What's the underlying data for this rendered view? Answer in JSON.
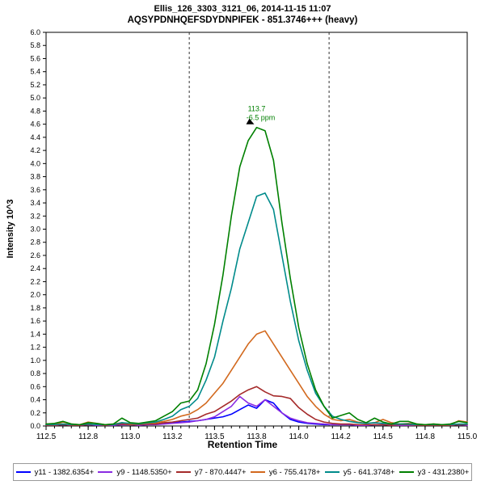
{
  "header": {
    "line1": "Ellis_126_3303_3121_06, 2014-11-15 11:07",
    "line2": "AQSYPDNHQEFSDYDNPIFEK - 851.3746+++ (heavy)"
  },
  "chart_data": {
    "type": "line",
    "title": "Ellis_126_3303_3121_06, 2014-11-15 11:07",
    "subtitle": "AQSYPDNHQEFSDYDNPIFEK - 851.3746+++ (heavy)",
    "xlabel": "Retention Time",
    "ylabel": "Intensity 10^3",
    "xlim": [
      112.5,
      115.0
    ],
    "ylim": [
      0.0,
      6.0
    ],
    "y_tick_step": 0.2,
    "x_minor_step": 0.05,
    "x_ticks": {
      "values": [
        112.5,
        112.75,
        113.0,
        113.25,
        113.5,
        113.75,
        114.0,
        114.25,
        114.5,
        114.75,
        115.0
      ],
      "labels": [
        "112.5",
        "112.8",
        "113.0",
        "113.2",
        "113.5",
        "113.8",
        "114.0",
        "114.2",
        "114.5",
        "114.8",
        "115.0"
      ]
    },
    "grid": false,
    "legend_position": "bottom",
    "peak_boundaries": [
      113.35,
      114.18
    ],
    "annotation": {
      "rt": 113.75,
      "apex_intensity": 4.55,
      "label": "113.7",
      "ppm": "-6.5 ppm",
      "color": "#008000"
    },
    "x": [
      112.5,
      112.55,
      112.6,
      112.65,
      112.7,
      112.75,
      112.8,
      112.85,
      112.9,
      112.95,
      113.0,
      113.05,
      113.1,
      113.15,
      113.2,
      113.25,
      113.3,
      113.35,
      113.4,
      113.45,
      113.5,
      113.55,
      113.6,
      113.65,
      113.7,
      113.75,
      113.8,
      113.85,
      113.9,
      113.95,
      114.0,
      114.05,
      114.1,
      114.15,
      114.2,
      114.25,
      114.3,
      114.35,
      114.4,
      114.45,
      114.5,
      114.55,
      114.6,
      114.65,
      114.7,
      114.75,
      114.8,
      114.85,
      114.9,
      114.95,
      115.0
    ],
    "series": [
      {
        "id": "y11",
        "name": "y11 - 1382.6354+",
        "color": "#0000FF",
        "values": [
          0.02,
          0.01,
          0.02,
          0.01,
          0.01,
          0.02,
          0.02,
          0.01,
          0.02,
          0.02,
          0.02,
          0.02,
          0.02,
          0.03,
          0.04,
          0.05,
          0.06,
          0.07,
          0.08,
          0.1,
          0.12,
          0.14,
          0.18,
          0.25,
          0.32,
          0.27,
          0.4,
          0.35,
          0.2,
          0.1,
          0.06,
          0.04,
          0.03,
          0.02,
          0.02,
          0.02,
          0.02,
          0.01,
          0.01,
          0.02,
          0.02,
          0.01,
          0.01,
          0.01,
          0.01,
          0.01,
          0.01,
          0.01,
          0.01,
          0.02,
          0.02
        ]
      },
      {
        "id": "y9",
        "name": "y9 - 1148.5350+",
        "color": "#8A2BE2",
        "values": [
          0.01,
          0.01,
          0.02,
          0.01,
          0.01,
          0.02,
          0.01,
          0.01,
          0.01,
          0.02,
          0.02,
          0.01,
          0.02,
          0.02,
          0.03,
          0.04,
          0.05,
          0.06,
          0.08,
          0.1,
          0.14,
          0.22,
          0.3,
          0.45,
          0.35,
          0.3,
          0.4,
          0.3,
          0.2,
          0.12,
          0.08,
          0.05,
          0.04,
          0.03,
          0.02,
          0.02,
          0.02,
          0.01,
          0.01,
          0.02,
          0.02,
          0.01,
          0.01,
          0.01,
          0.01,
          0.01,
          0.01,
          0.01,
          0.01,
          0.02,
          0.01
        ]
      },
      {
        "id": "y7",
        "name": "y7 - 870.4447+",
        "color": "#A52A2A",
        "values": [
          0.01,
          0.01,
          0.02,
          0.01,
          0.01,
          0.02,
          0.02,
          0.01,
          0.02,
          0.03,
          0.02,
          0.02,
          0.03,
          0.03,
          0.05,
          0.06,
          0.08,
          0.1,
          0.12,
          0.18,
          0.22,
          0.3,
          0.38,
          0.48,
          0.55,
          0.6,
          0.52,
          0.46,
          0.45,
          0.42,
          0.28,
          0.18,
          0.1,
          0.06,
          0.04,
          0.03,
          0.03,
          0.02,
          0.02,
          0.02,
          0.02,
          0.01,
          0.02,
          0.02,
          0.01,
          0.01,
          0.01,
          0.01,
          0.01,
          0.02,
          0.02
        ]
      },
      {
        "id": "y6",
        "name": "y6 - 755.4178+",
        "color": "#D2691E",
        "values": [
          0.03,
          0.02,
          0.06,
          0.03,
          0.02,
          0.06,
          0.04,
          0.02,
          0.03,
          0.05,
          0.03,
          0.03,
          0.04,
          0.05,
          0.07,
          0.1,
          0.15,
          0.18,
          0.25,
          0.35,
          0.5,
          0.65,
          0.85,
          1.05,
          1.25,
          1.4,
          1.45,
          1.25,
          1.05,
          0.85,
          0.65,
          0.45,
          0.3,
          0.18,
          0.1,
          0.08,
          0.1,
          0.06,
          0.04,
          0.05,
          0.1,
          0.05,
          0.03,
          0.04,
          0.03,
          0.02,
          0.03,
          0.02,
          0.02,
          0.08,
          0.06
        ]
      },
      {
        "id": "y5",
        "name": "y5 - 641.3748+",
        "color": "#008B8B",
        "values": [
          0.02,
          0.02,
          0.03,
          0.02,
          0.02,
          0.03,
          0.02,
          0.02,
          0.02,
          0.05,
          0.04,
          0.03,
          0.05,
          0.06,
          0.1,
          0.15,
          0.25,
          0.3,
          0.42,
          0.7,
          1.05,
          1.6,
          2.1,
          2.7,
          3.1,
          3.5,
          3.55,
          3.3,
          2.6,
          1.9,
          1.3,
          0.85,
          0.5,
          0.3,
          0.15,
          0.1,
          0.07,
          0.05,
          0.04,
          0.05,
          0.04,
          0.03,
          0.03,
          0.03,
          0.02,
          0.02,
          0.02,
          0.02,
          0.02,
          0.03,
          0.03
        ]
      },
      {
        "id": "y3",
        "name": "y3 - 431.2380+",
        "color": "#008000",
        "values": [
          0.03,
          0.04,
          0.07,
          0.03,
          0.02,
          0.05,
          0.04,
          0.02,
          0.03,
          0.12,
          0.05,
          0.04,
          0.06,
          0.08,
          0.15,
          0.22,
          0.35,
          0.38,
          0.55,
          0.95,
          1.55,
          2.3,
          3.2,
          3.95,
          4.35,
          4.55,
          4.5,
          4.05,
          3.1,
          2.25,
          1.5,
          0.95,
          0.55,
          0.3,
          0.12,
          0.16,
          0.2,
          0.1,
          0.05,
          0.12,
          0.06,
          0.03,
          0.07,
          0.07,
          0.03,
          0.02,
          0.03,
          0.02,
          0.03,
          0.07,
          0.05
        ]
      }
    ]
  }
}
